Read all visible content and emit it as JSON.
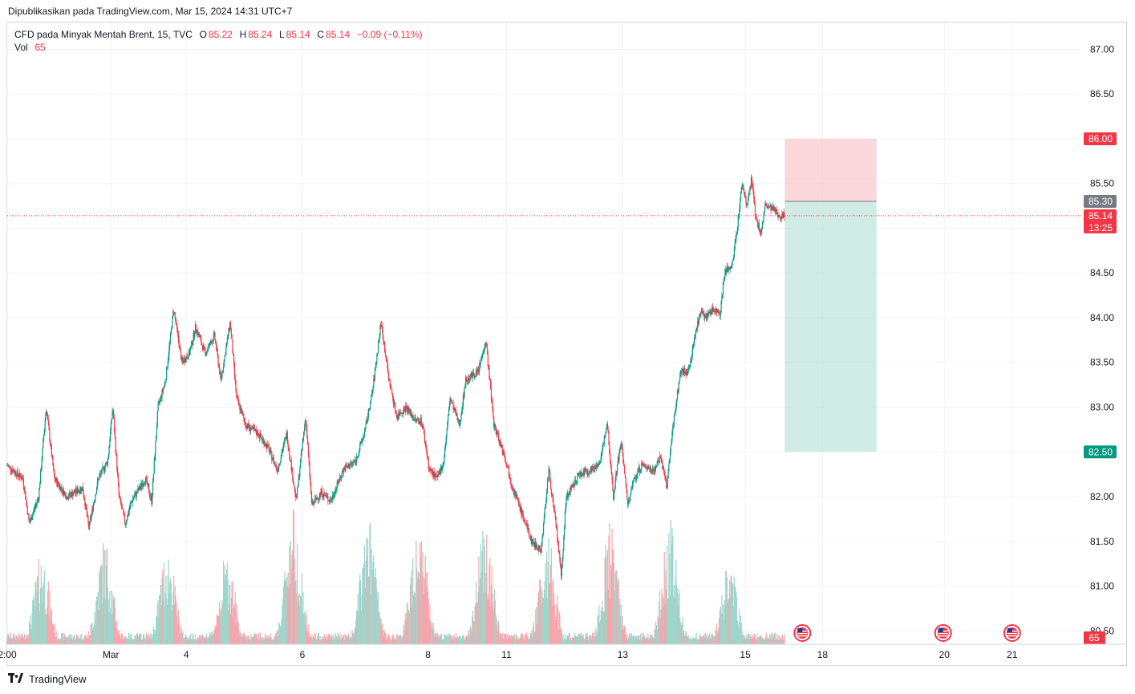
{
  "published": "Dipublikasikan pada TradingView.com, Mar 15, 2024 14:31 UTC+7",
  "legend": {
    "symbol": "CFD pada Minyak Mentah Brent, 15, TVC",
    "o_label": "O",
    "o_value": "85.22",
    "h_label": "H",
    "h_value": "85.24",
    "l_label": "L",
    "l_value": "85.14",
    "c_label": "C",
    "c_value": "85.14",
    "change": "−0.09 (−0.11%)",
    "vol_label": "Vol",
    "vol_value": "65"
  },
  "footer": {
    "brand": "TradingView",
    "logo_icon": "tradingview-logo-icon"
  },
  "colors": {
    "up": "#089981",
    "down": "#f23645",
    "grid": "#f0f3fa",
    "stop_zone": "#f7c9ce",
    "target_zone": "#b2dfd4"
  },
  "chart_data": {
    "type": "candlestick",
    "title": "CFD pada Minyak Mentah Brent, 15, TVC",
    "ylim": [
      80.35,
      87.3
    ],
    "y_ticks": [
      "87.00",
      "86.50",
      "86.00",
      "85.50",
      "85.00",
      "84.50",
      "84.00",
      "83.50",
      "83.00",
      "82.50",
      "82.00",
      "81.50",
      "81.00",
      "80.50"
    ],
    "x_ticks": [
      {
        "label": "2:00",
        "day": 0.0
      },
      {
        "label": "Mar",
        "day": 1.65
      },
      {
        "label": "4",
        "day": 2.85
      },
      {
        "label": "6",
        "day": 4.7
      },
      {
        "label": "8",
        "day": 6.7
      },
      {
        "label": "11",
        "day": 7.95
      },
      {
        "label": "13",
        "day": 9.8
      },
      {
        "label": "15",
        "day": 11.75
      },
      {
        "label": "18",
        "day": 12.98
      },
      {
        "label": "20",
        "day": 14.92
      },
      {
        "label": "21",
        "day": 16.0
      }
    ],
    "x_range_days": [
      0,
      17.1
    ],
    "price_path": [
      {
        "day": 0.0,
        "price": 82.35
      },
      {
        "day": 0.25,
        "price": 82.2
      },
      {
        "day": 0.35,
        "price": 81.7
      },
      {
        "day": 0.5,
        "price": 82.0
      },
      {
        "day": 0.62,
        "price": 83.0
      },
      {
        "day": 0.75,
        "price": 82.2
      },
      {
        "day": 0.95,
        "price": 82.0
      },
      {
        "day": 1.2,
        "price": 82.1
      },
      {
        "day": 1.3,
        "price": 81.65
      },
      {
        "day": 1.45,
        "price": 82.2
      },
      {
        "day": 1.6,
        "price": 82.4
      },
      {
        "day": 1.68,
        "price": 83.0
      },
      {
        "day": 1.78,
        "price": 82.0
      },
      {
        "day": 1.88,
        "price": 81.7
      },
      {
        "day": 1.98,
        "price": 81.95
      },
      {
        "day": 2.2,
        "price": 82.2
      },
      {
        "day": 2.3,
        "price": 81.95
      },
      {
        "day": 2.4,
        "price": 83.0
      },
      {
        "day": 2.52,
        "price": 83.3
      },
      {
        "day": 2.65,
        "price": 84.1
      },
      {
        "day": 2.78,
        "price": 83.5
      },
      {
        "day": 2.9,
        "price": 83.6
      },
      {
        "day": 3.0,
        "price": 83.9
      },
      {
        "day": 3.15,
        "price": 83.6
      },
      {
        "day": 3.3,
        "price": 83.8
      },
      {
        "day": 3.4,
        "price": 83.3
      },
      {
        "day": 3.55,
        "price": 83.95
      },
      {
        "day": 3.65,
        "price": 83.1
      },
      {
        "day": 3.8,
        "price": 82.8
      },
      {
        "day": 4.0,
        "price": 82.7
      },
      {
        "day": 4.15,
        "price": 82.55
      },
      {
        "day": 4.3,
        "price": 82.3
      },
      {
        "day": 4.45,
        "price": 82.7
      },
      {
        "day": 4.6,
        "price": 81.95
      },
      {
        "day": 4.75,
        "price": 82.9
      },
      {
        "day": 4.85,
        "price": 81.9
      },
      {
        "day": 5.0,
        "price": 82.05
      },
      {
        "day": 5.15,
        "price": 81.95
      },
      {
        "day": 5.35,
        "price": 82.3
      },
      {
        "day": 5.55,
        "price": 82.4
      },
      {
        "day": 5.7,
        "price": 82.75
      },
      {
        "day": 5.82,
        "price": 83.2
      },
      {
        "day": 5.95,
        "price": 83.95
      },
      {
        "day": 6.08,
        "price": 83.3
      },
      {
        "day": 6.2,
        "price": 82.9
      },
      {
        "day": 6.35,
        "price": 83.0
      },
      {
        "day": 6.5,
        "price": 82.85
      },
      {
        "day": 6.6,
        "price": 82.85
      },
      {
        "day": 6.72,
        "price": 82.3
      },
      {
        "day": 6.85,
        "price": 82.2
      },
      {
        "day": 6.95,
        "price": 82.4
      },
      {
        "day": 7.05,
        "price": 83.1
      },
      {
        "day": 7.2,
        "price": 82.8
      },
      {
        "day": 7.3,
        "price": 83.3
      },
      {
        "day": 7.5,
        "price": 83.4
      },
      {
        "day": 7.62,
        "price": 83.75
      },
      {
        "day": 7.75,
        "price": 82.8
      },
      {
        "day": 7.9,
        "price": 82.5
      },
      {
        "day": 8.05,
        "price": 82.1
      },
      {
        "day": 8.2,
        "price": 81.8
      },
      {
        "day": 8.35,
        "price": 81.5
      },
      {
        "day": 8.5,
        "price": 81.4
      },
      {
        "day": 8.62,
        "price": 82.3
      },
      {
        "day": 8.75,
        "price": 81.6
      },
      {
        "day": 8.82,
        "price": 81.1
      },
      {
        "day": 8.9,
        "price": 82.0
      },
      {
        "day": 9.0,
        "price": 82.1
      },
      {
        "day": 9.1,
        "price": 82.25
      },
      {
        "day": 9.3,
        "price": 82.3
      },
      {
        "day": 9.45,
        "price": 82.4
      },
      {
        "day": 9.55,
        "price": 82.85
      },
      {
        "day": 9.65,
        "price": 82.0
      },
      {
        "day": 9.72,
        "price": 82.4
      },
      {
        "day": 9.78,
        "price": 82.6
      },
      {
        "day": 9.88,
        "price": 81.9
      },
      {
        "day": 9.98,
        "price": 82.2
      },
      {
        "day": 10.1,
        "price": 82.35
      },
      {
        "day": 10.3,
        "price": 82.3
      },
      {
        "day": 10.4,
        "price": 82.45
      },
      {
        "day": 10.5,
        "price": 82.1
      },
      {
        "day": 10.6,
        "price": 82.8
      },
      {
        "day": 10.72,
        "price": 83.4
      },
      {
        "day": 10.85,
        "price": 83.4
      },
      {
        "day": 10.95,
        "price": 83.8
      },
      {
        "day": 11.05,
        "price": 84.1
      },
      {
        "day": 11.12,
        "price": 84.0
      },
      {
        "day": 11.25,
        "price": 84.1
      },
      {
        "day": 11.35,
        "price": 84.05
      },
      {
        "day": 11.42,
        "price": 84.5
      },
      {
        "day": 11.55,
        "price": 84.6
      },
      {
        "day": 11.62,
        "price": 85.0
      },
      {
        "day": 11.7,
        "price": 85.5
      },
      {
        "day": 11.78,
        "price": 85.25
      },
      {
        "day": 11.85,
        "price": 85.55
      },
      {
        "day": 11.92,
        "price": 85.1
      },
      {
        "day": 12.0,
        "price": 84.95
      },
      {
        "day": 12.07,
        "price": 85.25
      },
      {
        "day": 12.2,
        "price": 85.2
      },
      {
        "day": 12.3,
        "price": 85.15
      },
      {
        "day": 12.38,
        "price": 85.14
      }
    ],
    "position": {
      "type": "short",
      "entry": 85.3,
      "stop": 86.0,
      "target": 82.5,
      "start_day": 12.38,
      "end_day": 13.84
    },
    "price_labels": {
      "stop": "86.00",
      "entry": "85.30",
      "last_price": "85.14",
      "countdown": "13:25",
      "target": "82.50",
      "volume": "65"
    },
    "last_price": 85.14,
    "volume_peaks": [
      {
        "day": 0.55,
        "height": 0.65
      },
      {
        "day": 1.55,
        "height": 0.75
      },
      {
        "day": 2.55,
        "height": 0.7
      },
      {
        "day": 3.5,
        "height": 0.65
      },
      {
        "day": 4.55,
        "height": 1.0
      },
      {
        "day": 5.75,
        "height": 0.9
      },
      {
        "day": 6.55,
        "height": 0.95
      },
      {
        "day": 7.6,
        "height": 0.9
      },
      {
        "day": 8.6,
        "height": 0.8
      },
      {
        "day": 9.6,
        "height": 0.85
      },
      {
        "day": 10.55,
        "height": 0.9
      },
      {
        "day": 11.5,
        "height": 0.6
      }
    ],
    "event_flags": [
      {
        "day": 12.66,
        "icon": "us-flag-icon"
      },
      {
        "day": 14.9,
        "icon": "us-flag-icon"
      },
      {
        "day": 16.0,
        "icon": "us-flag-icon"
      }
    ]
  }
}
